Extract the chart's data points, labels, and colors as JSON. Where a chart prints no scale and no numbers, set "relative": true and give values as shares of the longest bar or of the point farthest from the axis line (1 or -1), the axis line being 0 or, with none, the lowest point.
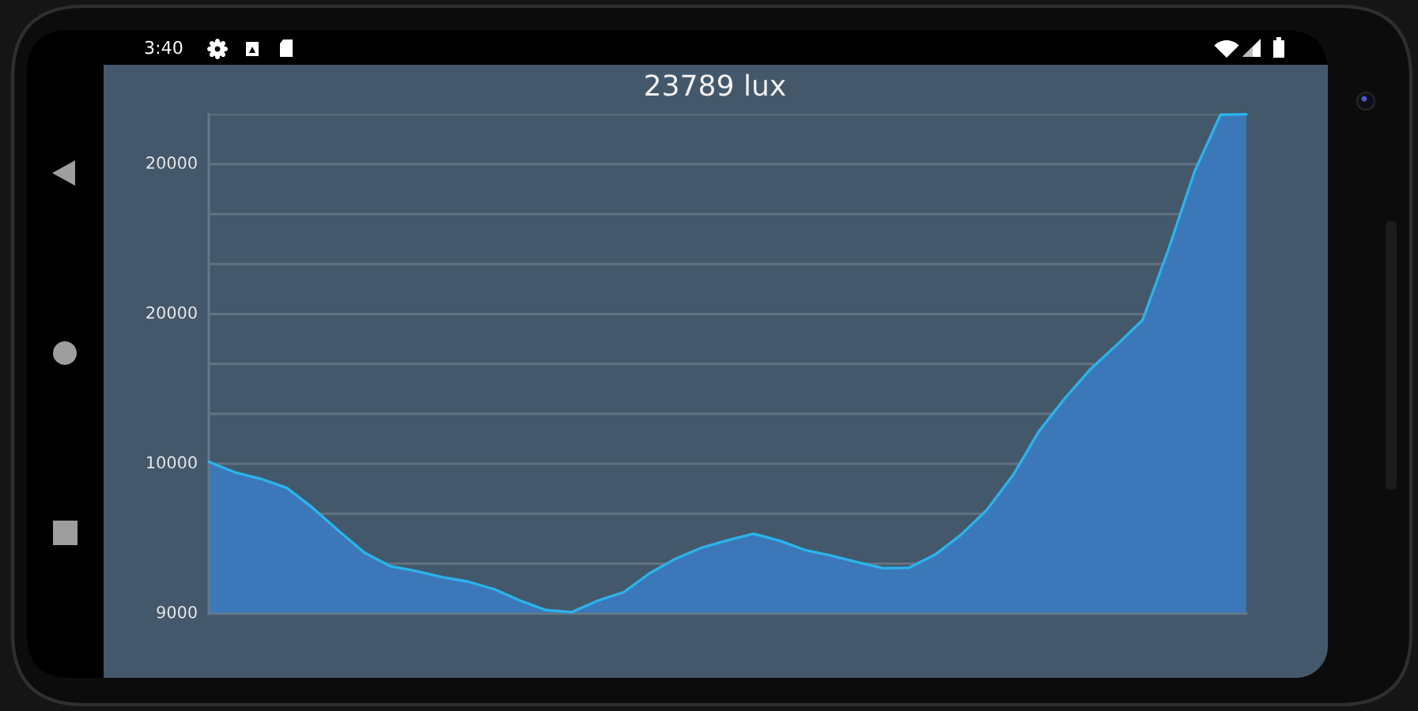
{
  "chart_data": {
    "type": "area",
    "title": "23789 lux",
    "annotations": [
      "3:40",
      "20000",
      "20000",
      "10000",
      "9000"
    ],
    "categories": [
      null,
      null,
      null,
      null,
      null,
      null,
      null,
      null,
      null,
      null,
      null,
      null,
      null,
      null,
      null,
      null,
      null,
      null,
      null,
      null,
      null,
      null,
      null,
      null,
      null,
      null,
      null,
      null,
      null,
      null,
      null,
      null,
      null,
      null,
      null,
      null,
      null,
      null,
      null,
      null,
      null
    ],
    "values": [
      0.304,
      0.283,
      0.27,
      0.252,
      0.212,
      0.166,
      0.122,
      0.095,
      0.085,
      0.073,
      0.064,
      0.049,
      0.026,
      0.007,
      0.003,
      0.026,
      0.043,
      0.081,
      0.11,
      0.132,
      0.147,
      0.16,
      0.146,
      0.127,
      0.116,
      0.103,
      0.091,
      0.092,
      0.118,
      0.158,
      0.208,
      0.277,
      0.365,
      0.431,
      0.49,
      0.538,
      0.588,
      0.73,
      0.885,
      0.999,
      1
    ],
    "relative": true,
    "color": "#3c78b9",
    "grid": "y",
    "tick_labels": "y"
  }
}
